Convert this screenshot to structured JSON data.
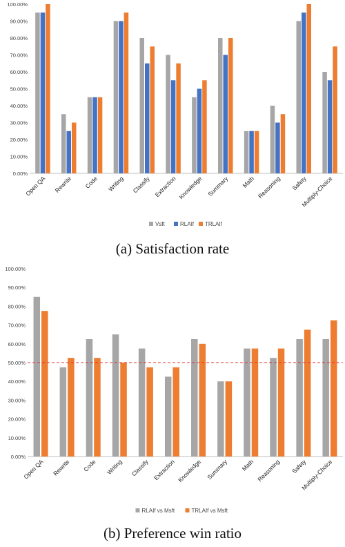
{
  "chart_data": [
    {
      "type": "bar",
      "caption": "(a)   Satisfaction rate",
      "categories": [
        "Open QA",
        "Rewrite",
        "Code",
        "Writing",
        "Classify",
        "Extraction",
        "Knowledge",
        "Summary",
        "Math",
        "Reasoning",
        "Safety",
        "Multiply-Choice"
      ],
      "series": [
        {
          "name": "Vsft",
          "color": "#a6a6a6",
          "values": [
            95,
            35,
            45,
            90,
            80,
            70,
            45,
            80,
            25,
            40,
            90,
            60
          ]
        },
        {
          "name": "RLAIf",
          "color": "#4472c4",
          "values": [
            95,
            25,
            45,
            90,
            65,
            55,
            50,
            70,
            25,
            30,
            95,
            55
          ]
        },
        {
          "name": "TRLAIf",
          "color": "#ed7d31",
          "values": [
            100,
            30,
            45,
            95,
            75,
            65,
            55,
            80,
            25,
            35,
            100,
            75
          ]
        }
      ],
      "yticks": [
        "0.00%",
        "10.00%",
        "20.00%",
        "30.00%",
        "40.00%",
        "50.00%",
        "60.00%",
        "70.00%",
        "80.00%",
        "90.00%",
        "100.00%"
      ],
      "ylim": [
        0,
        100
      ],
      "grid": false,
      "legend": "bottom"
    },
    {
      "type": "bar",
      "caption": "(b)  Preference win ratio",
      "categories": [
        "Open QA",
        "Rewrite",
        "Code",
        "Writing",
        "Classify",
        "Extraction",
        "Knowledge",
        "Summary",
        "Math",
        "Reasoning",
        "Safety",
        "Multiply-Choice"
      ],
      "series": [
        {
          "name": "RLAIf vs Msft",
          "color": "#a6a6a6",
          "values": [
            85,
            47.5,
            62.5,
            65,
            57.5,
            42.5,
            62.5,
            40,
            57.5,
            52.5,
            62.5,
            62.5
          ]
        },
        {
          "name": "TRLAIf vs Msft",
          "color": "#ed7d31",
          "values": [
            77.5,
            52.5,
            52.5,
            50,
            47.5,
            47.5,
            60,
            40,
            57.5,
            57.5,
            67.5,
            72.5
          ]
        }
      ],
      "yticks": [
        "0.00%",
        "10.00%",
        "20.00%",
        "30.00%",
        "40.00%",
        "50.00%",
        "60.00%",
        "70.00%",
        "80.00%",
        "90.00%",
        "100.00%"
      ],
      "ylim": [
        0,
        100
      ],
      "reference_line": 50,
      "reference_color": "#e03131",
      "grid": false,
      "legend": "bottom"
    }
  ]
}
